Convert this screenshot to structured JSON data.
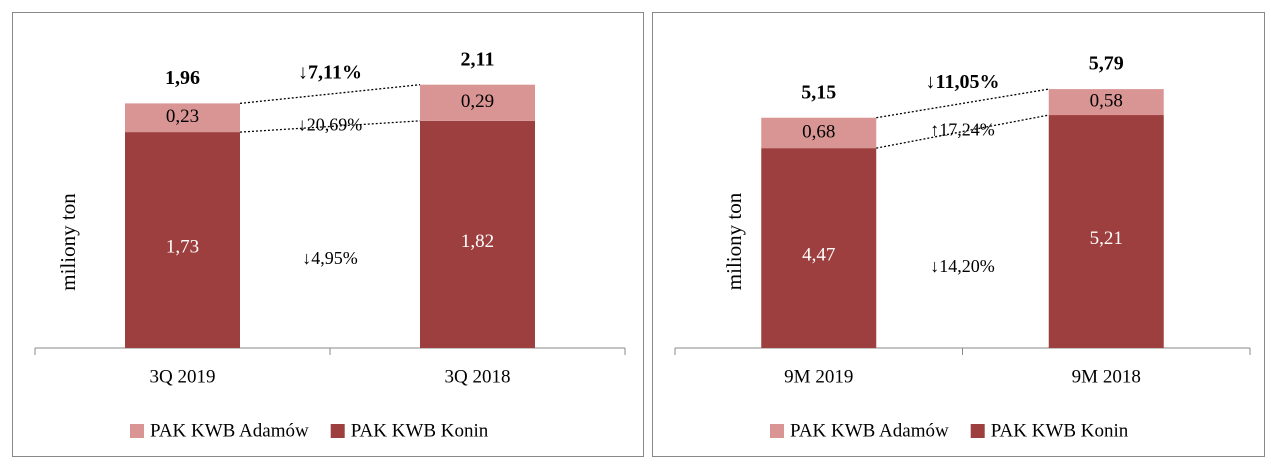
{
  "chart_data": [
    {
      "type": "stacked_bar",
      "y_label": "miliony ton",
      "categories": [
        "3Q 2019",
        "3Q 2018"
      ],
      "series": [
        {
          "name": "PAK KWB Adamów",
          "color": "#d99594",
          "values": [
            0.23,
            0.29
          ],
          "value_labels": [
            "0,23",
            "0,29"
          ]
        },
        {
          "name": "PAK KWB Konin",
          "color": "#9e3f3f",
          "values": [
            1.73,
            1.82
          ],
          "value_labels": [
            "1,73",
            "1,82"
          ]
        }
      ],
      "totals": [
        1.96,
        2.11
      ],
      "total_labels": [
        "1,96",
        "2,11"
      ],
      "annotations": [
        "↓7,11%",
        "↓20,69%",
        "↓4,95%"
      ],
      "ylim": [
        0,
        2.5
      ],
      "legend": "bottom"
    },
    {
      "type": "stacked_bar",
      "y_label": "miliony ton",
      "categories": [
        "9M 2019",
        "9M 2018"
      ],
      "series": [
        {
          "name": "PAK KWB Adamów",
          "color": "#d99594",
          "values": [
            0.68,
            0.58
          ],
          "value_labels": [
            "0,68",
            "0,58"
          ]
        },
        {
          "name": "PAK KWB Konin",
          "color": "#9e3f3f",
          "values": [
            4.47,
            5.21
          ],
          "value_labels": [
            "4,47",
            "5,21"
          ]
        }
      ],
      "totals": [
        5.15,
        5.79
      ],
      "total_labels": [
        "5,15",
        "5,79"
      ],
      "annotations": [
        "↓11,05%",
        "↑17,24%",
        "↓14,20%"
      ],
      "ylim": [
        0,
        7
      ],
      "legend": "bottom"
    }
  ]
}
